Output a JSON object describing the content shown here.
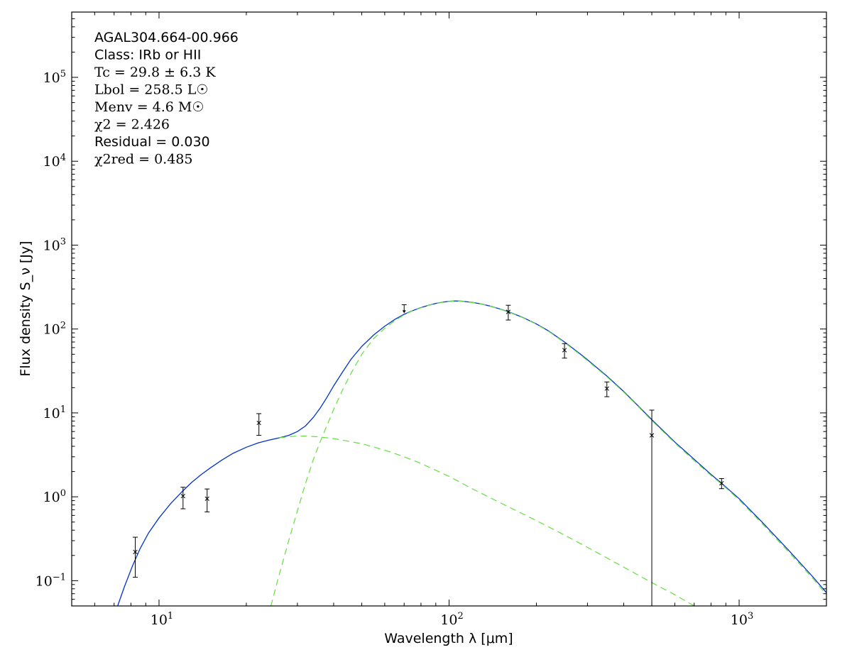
{
  "chart_data": {
    "type": "scatter",
    "x_scale": "log",
    "y_scale": "log",
    "xlim": [
      5,
      2000
    ],
    "ylim": [
      0.05,
      600000
    ],
    "grid": false,
    "xlabel": "Wavelength λ [μm]",
    "ylabel": "Flux density S_ν [Jy]",
    "x_ticks": [
      {
        "value": 10,
        "base": "10",
        "exp": "1"
      },
      {
        "value": 100,
        "base": "10",
        "exp": "2"
      },
      {
        "value": 1000,
        "base": "10",
        "exp": "3"
      }
    ],
    "y_ticks": [
      {
        "value": 0.1,
        "base": "10",
        "exp": "−1"
      },
      {
        "value": 1,
        "base": "10",
        "exp": "0"
      },
      {
        "value": 10,
        "base": "10",
        "exp": "1"
      },
      {
        "value": 100,
        "base": "10",
        "exp": "2"
      },
      {
        "value": 1000,
        "base": "10",
        "exp": "3"
      },
      {
        "value": 10000,
        "base": "10",
        "exp": "4"
      },
      {
        "value": 100000,
        "base": "10",
        "exp": "5"
      }
    ],
    "annotations": [
      {
        "text": "AGAL304.664-00.966",
        "style": "text"
      },
      {
        "text": "Class: IRb or HII",
        "style": "text"
      },
      {
        "text": "Tc = 29.8 ± 6.3 K",
        "style": "math"
      },
      {
        "text": "Lbol = 258.5 L☉",
        "style": "math"
      },
      {
        "text": "Menv = 4.6 M☉",
        "style": "math"
      },
      {
        "text": "χ2 = 2.426",
        "style": "math"
      },
      {
        "text": "Residual = 0.030",
        "style": "text"
      },
      {
        "text": "χ2red = 0.485",
        "style": "math"
      }
    ],
    "series": [
      {
        "kind": "points",
        "color": "#000000",
        "marker": "x",
        "points": [
          {
            "x": 8.28,
            "y": 0.22,
            "yerr_low": 0.11,
            "yerr_high": 0.33
          },
          {
            "x": 12.1,
            "y": 1.02,
            "yerr_low": 0.72,
            "yerr_high": 1.3
          },
          {
            "x": 14.65,
            "y": 0.95,
            "yerr_low": 0.66,
            "yerr_high": 1.24
          },
          {
            "x": 22.1,
            "y": 7.6,
            "yerr_low": 5.4,
            "yerr_high": 9.8
          },
          {
            "x": 160,
            "y": 160,
            "yerr_low": 128,
            "yerr_high": 192
          },
          {
            "x": 250,
            "y": 56,
            "yerr_low": 45,
            "yerr_high": 67
          },
          {
            "x": 350,
            "y": 19.5,
            "yerr_low": 15.6,
            "yerr_high": 23.4
          },
          {
            "x": 500,
            "y": 5.4,
            "yerr_low": 0.05,
            "yerr_high": 10.8
          },
          {
            "x": 870,
            "y": 1.45,
            "yerr_low": 1.25,
            "yerr_high": 1.65
          }
        ]
      },
      {
        "kind": "upper_limit",
        "color": "#000000",
        "points": [
          {
            "x": 70,
            "y": 195
          }
        ]
      },
      {
        "kind": "line",
        "style": "solid",
        "color": "#0033cc",
        "points": [
          [
            7.2,
            0.05
          ],
          [
            7.6,
            0.085
          ],
          [
            8.1,
            0.15
          ],
          [
            8.6,
            0.24
          ],
          [
            9.2,
            0.37
          ],
          [
            10,
            0.56
          ],
          [
            11,
            0.84
          ],
          [
            12,
            1.15
          ],
          [
            13,
            1.5
          ],
          [
            14,
            1.85
          ],
          [
            15,
            2.2
          ],
          [
            16.5,
            2.75
          ],
          [
            18,
            3.3
          ],
          [
            20,
            3.9
          ],
          [
            22,
            4.4
          ],
          [
            24,
            4.75
          ],
          [
            26,
            5.05
          ],
          [
            28,
            5.4
          ],
          [
            30,
            6.0
          ],
          [
            32,
            7.0
          ],
          [
            34,
            8.8
          ],
          [
            36,
            11.5
          ],
          [
            38,
            15.5
          ],
          [
            40,
            21
          ],
          [
            43,
            31
          ],
          [
            46,
            44
          ],
          [
            50,
            62
          ],
          [
            55,
            85
          ],
          [
            60,
            108
          ],
          [
            65,
            130
          ],
          [
            70,
            150
          ],
          [
            75,
            166
          ],
          [
            80,
            180
          ],
          [
            85,
            192
          ],
          [
            90,
            202
          ],
          [
            95,
            209
          ],
          [
            100,
            214
          ],
          [
            105,
            216
          ],
          [
            110,
            215
          ],
          [
            120,
            208
          ],
          [
            130,
            198
          ],
          [
            140,
            186
          ],
          [
            150,
            173
          ],
          [
            160,
            161
          ],
          [
            180,
            137
          ],
          [
            200,
            115
          ],
          [
            220,
            95
          ],
          [
            250,
            70
          ],
          [
            280,
            52
          ],
          [
            300,
            43
          ],
          [
            350,
            27.5
          ],
          [
            400,
            18
          ],
          [
            450,
            12
          ],
          [
            500,
            8.3
          ],
          [
            600,
            4.5
          ],
          [
            700,
            2.8
          ],
          [
            800,
            1.85
          ],
          [
            870,
            1.45
          ],
          [
            1000,
            0.95
          ],
          [
            1200,
            0.5
          ],
          [
            1500,
            0.22
          ],
          [
            1800,
            0.11
          ],
          [
            2000,
            0.072
          ]
        ]
      },
      {
        "kind": "line",
        "style": "dashed",
        "color": "#66dd44",
        "points": [
          [
            24.3,
            0.05
          ],
          [
            26,
            0.12
          ],
          [
            28,
            0.3
          ],
          [
            30,
            0.68
          ],
          [
            32,
            1.45
          ],
          [
            34,
            2.75
          ],
          [
            36,
            4.6
          ],
          [
            38,
            7.2
          ],
          [
            40,
            11
          ],
          [
            43,
            19
          ],
          [
            46,
            30
          ],
          [
            50,
            50
          ],
          [
            55,
            77
          ],
          [
            60,
            102
          ],
          [
            65,
            126
          ],
          [
            70,
            148
          ],
          [
            75,
            165
          ],
          [
            80,
            179
          ],
          [
            85,
            191
          ],
          [
            90,
            201
          ],
          [
            95,
            208
          ],
          [
            100,
            213
          ],
          [
            105,
            215
          ],
          [
            110,
            214
          ],
          [
            120,
            207
          ],
          [
            130,
            197
          ],
          [
            140,
            185
          ],
          [
            150,
            172
          ],
          [
            160,
            160
          ],
          [
            180,
            136
          ],
          [
            200,
            114
          ],
          [
            220,
            94
          ],
          [
            250,
            69
          ],
          [
            280,
            51
          ],
          [
            300,
            42
          ],
          [
            350,
            27
          ],
          [
            400,
            17.7
          ],
          [
            450,
            11.8
          ],
          [
            500,
            8.1
          ],
          [
            600,
            4.4
          ],
          [
            700,
            2.7
          ],
          [
            800,
            1.8
          ],
          [
            870,
            1.42
          ],
          [
            1000,
            0.92
          ],
          [
            1200,
            0.48
          ],
          [
            1500,
            0.21
          ],
          [
            1800,
            0.105
          ],
          [
            2000,
            0.068
          ]
        ]
      },
      {
        "kind": "line",
        "style": "dashed",
        "color": "#66dd44",
        "points": [
          [
            26,
            5.05
          ],
          [
            28,
            5.2
          ],
          [
            30,
            5.3
          ],
          [
            32,
            5.3
          ],
          [
            35,
            5.2
          ],
          [
            40,
            4.95
          ],
          [
            50,
            4.3
          ],
          [
            60,
            3.6
          ],
          [
            70,
            3.0
          ],
          [
            80,
            2.5
          ],
          [
            100,
            1.75
          ],
          [
            120,
            1.25
          ],
          [
            150,
            0.85
          ],
          [
            200,
            0.52
          ],
          [
            250,
            0.35
          ],
          [
            300,
            0.25
          ],
          [
            400,
            0.145
          ],
          [
            500,
            0.095
          ],
          [
            600,
            0.068
          ],
          [
            700,
            0.05
          ]
        ]
      }
    ]
  }
}
